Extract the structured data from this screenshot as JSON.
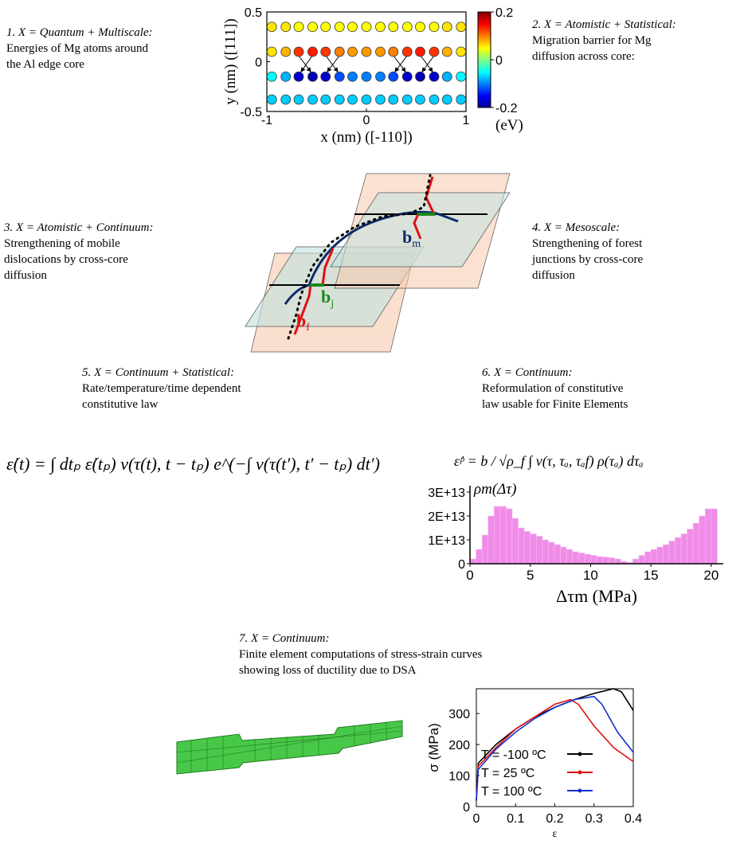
{
  "captions": [
    {
      "heading": "1. X = Quantum + Multiscale:",
      "lines": [
        "Energies of Mg atoms around",
        "the Al edge core"
      ]
    },
    {
      "heading": "2. X = Atomistic + Statistical:",
      "lines": [
        "Migration barrier for Mg",
        "diffusion across core:"
      ]
    },
    {
      "heading": "3. X = Atomistic + Continuum:",
      "lines": [
        "Strengthening of mobile",
        "dislocations by cross-core",
        "diffusion"
      ]
    },
    {
      "heading": "4. X = Mesoscale:",
      "lines": [
        "Strengthening of forest",
        "junctions by cross-core",
        "diffusion"
      ]
    },
    {
      "heading": "5. X = Continuum + Statistical:",
      "lines": [
        "Rate/temperature/time dependent",
        "constitutive law"
      ]
    },
    {
      "heading": "6. X = Continuum:",
      "lines": [
        "Reformulation of constitutive",
        "law usable for Finite Elements"
      ]
    },
    {
      "heading": "7. X = Continuum:",
      "lines": [
        "Finite element computations of stress-strain curves",
        "showing loss of ductility due to DSA"
      ]
    }
  ],
  "diagram": {
    "labels": [
      {
        "main": "b",
        "sub": "m"
      },
      {
        "main": "b",
        "sub": "j"
      },
      {
        "main": "b",
        "sub": "f"
      }
    ]
  },
  "equations": [
    "ε̇(t) = ∫ dtₚ ε̇(tₚ) ν(τ(t), t − tₚ) e^(−∫ ν(τ(t′), t′ − tₚ) dt′)",
    "ε̇ᵖ = b / √ρ_f ∫ ν(τ, τₐ, τₐf) ρ(τₐ) dτₐ"
  ],
  "chart_data": [
    {
      "type": "scatter",
      "xlabel": "x (nm) ([-110])",
      "ylabel": "y (nm) ([111])",
      "xlim": [
        -1,
        1
      ],
      "ylim": [
        -0.5,
        0.5
      ],
      "xticks": [
        -1,
        0,
        1
      ],
      "yticks": [
        -0.5,
        0,
        0.5
      ],
      "colorbar": {
        "lim": [
          -0.2,
          0.2
        ],
        "ticks": [
          -0.2,
          0,
          0.2
        ],
        "label": "(eV)",
        "colormap": "jet"
      },
      "series": [
        {
          "x": [
            -0.95,
            -0.81,
            -0.68,
            -0.54,
            -0.41,
            -0.27,
            -0.14,
            0,
            0.14,
            0.27,
            0.41,
            0.54,
            0.68,
            0.81,
            0.95,
            -0.95,
            -0.81,
            -0.68,
            -0.54,
            -0.41,
            -0.27,
            -0.14,
            0,
            0.14,
            0.27,
            0.41,
            0.54,
            0.68,
            0.81,
            0.95,
            -0.95,
            -0.81,
            -0.68,
            -0.54,
            -0.41,
            -0.27,
            -0.14,
            0,
            0.14,
            0.27,
            0.41,
            0.54,
            0.68,
            0.81,
            0.95,
            -0.95,
            -0.81,
            -0.68,
            -0.54,
            -0.41,
            -0.27,
            -0.14,
            0,
            0.14,
            0.27,
            0.41,
            0.54,
            0.68,
            0.81,
            0.95
          ],
          "values": [
            0.35,
            0.35,
            0.35,
            0.35,
            0.35,
            0.35,
            0.35,
            0.35,
            0.35,
            0.35,
            0.35,
            0.35,
            0.35,
            0.35,
            0.35,
            0.1,
            0.1,
            0.1,
            0.1,
            0.1,
            0.1,
            0.1,
            0.1,
            0.1,
            0.1,
            0.1,
            0.1,
            0.1,
            0.1,
            0.1,
            -0.15,
            -0.15,
            -0.15,
            -0.15,
            -0.15,
            -0.15,
            -0.15,
            -0.15,
            -0.15,
            -0.15,
            -0.15,
            -0.15,
            -0.15,
            -0.15,
            -0.15,
            -0.38,
            -0.38,
            -0.38,
            -0.38,
            -0.38,
            -0.38,
            -0.38,
            -0.38,
            -0.38,
            -0.38,
            -0.38,
            -0.38,
            -0.38,
            -0.38,
            -0.38
          ],
          "color_values": [
            0.06,
            0.06,
            0.05,
            0.05,
            0.05,
            0.05,
            0.05,
            0.05,
            0.05,
            0.05,
            0.05,
            0.05,
            0.05,
            0.06,
            0.06,
            0.06,
            0.08,
            0.13,
            0.14,
            0.13,
            0.1,
            0.09,
            0.09,
            0.09,
            0.1,
            0.13,
            0.14,
            0.13,
            0.08,
            0.06,
            -0.05,
            -0.08,
            -0.17,
            -0.18,
            -0.17,
            -0.12,
            -0.1,
            -0.1,
            -0.1,
            -0.12,
            -0.17,
            -0.18,
            -0.17,
            -0.08,
            -0.05,
            -0.07,
            -0.07,
            -0.07,
            -0.07,
            -0.07,
            -0.07,
            -0.07,
            -0.07,
            -0.07,
            -0.07,
            -0.07,
            -0.07,
            -0.07,
            -0.07,
            -0.07
          ]
        }
      ]
    },
    {
      "type": "histogram",
      "title": "ρm(Δτ)",
      "xlabel": "Δτm (MPa)",
      "color": "#f08ce8",
      "xlim": [
        0,
        21
      ],
      "xticks": [
        0,
        5,
        10,
        15,
        20
      ],
      "ylim": [
        0,
        30000000000000
      ],
      "yticks": [
        0,
        {
          "value": 10000000000000,
          "label": "1E+13"
        },
        {
          "value": 20000000000000,
          "label": "2E+13"
        },
        {
          "value": 30000000000000,
          "label": "3E+13"
        }
      ],
      "bins": [
        0,
        0.5,
        1,
        1.5,
        2,
        2.5,
        3,
        3.5,
        4,
        4.5,
        5,
        5.5,
        6,
        6.5,
        7,
        7.5,
        8,
        8.5,
        9,
        9.5,
        10,
        10.5,
        11,
        11.5,
        12,
        12.5,
        13,
        13.5,
        14,
        14.5,
        15,
        15.5,
        16,
        16.5,
        17,
        17.5,
        18,
        18.5,
        19,
        19.5,
        20,
        20.5
      ],
      "values": [
        2000000000000.0,
        6000000000000.0,
        12000000000000.0,
        20000000000000.0,
        24000000000000.0,
        24000000000000.0,
        23000000000000.0,
        19000000000000.0,
        15000000000000.0,
        13500000000000.0,
        12500000000000.0,
        11500000000000.0,
        10000000000000.0,
        9000000000000.0,
        8000000000000.0,
        7000000000000.0,
        6000000000000.0,
        5000000000000.0,
        4500000000000.0,
        4000000000000.0,
        3500000000000.0,
        3000000000000.0,
        2800000000000.0,
        2500000000000.0,
        2000000000000.0,
        1000000000000.0,
        500000000000.0,
        2000000000000.0,
        3500000000000.0,
        5000000000000.0,
        6000000000000.0,
        7000000000000.0,
        8000000000000.0,
        9500000000000.0,
        11000000000000.0,
        12500000000000.0,
        14500000000000.0,
        17000000000000.0,
        20000000000000.0,
        23000000000000.0,
        23000000000000.0
      ]
    },
    {
      "type": "line",
      "xlabel": "ε",
      "ylabel": "σ (MPa)",
      "xlim": [
        0,
        0.4
      ],
      "ylim": [
        0,
        380
      ],
      "xticks": [
        0,
        0.1,
        0.2,
        0.3,
        0.4
      ],
      "yticks": [
        0,
        100,
        200,
        300
      ],
      "legend": "lower-left",
      "series": [
        {
          "name": "T = -100 ºC",
          "color": "#000000",
          "x": [
            0,
            0.005,
            0.05,
            0.1,
            0.15,
            0.2,
            0.25,
            0.3,
            0.35,
            0.37,
            0.4
          ],
          "values": [
            20,
            140,
            200,
            250,
            290,
            320,
            345,
            365,
            380,
            370,
            310
          ]
        },
        {
          "name": "T = 25 ºC",
          "color": "#e01010",
          "x": [
            0,
            0.005,
            0.05,
            0.1,
            0.15,
            0.2,
            0.24,
            0.26,
            0.3,
            0.35,
            0.4
          ],
          "values": [
            20,
            130,
            190,
            250,
            290,
            330,
            345,
            330,
            260,
            190,
            145
          ]
        },
        {
          "name": "T = 100 ºC",
          "color": "#1030d0",
          "x": [
            0,
            0.005,
            0.05,
            0.1,
            0.15,
            0.2,
            0.25,
            0.3,
            0.32,
            0.36,
            0.4
          ],
          "values": [
            20,
            120,
            185,
            240,
            285,
            320,
            345,
            355,
            330,
            240,
            175
          ]
        }
      ]
    }
  ]
}
